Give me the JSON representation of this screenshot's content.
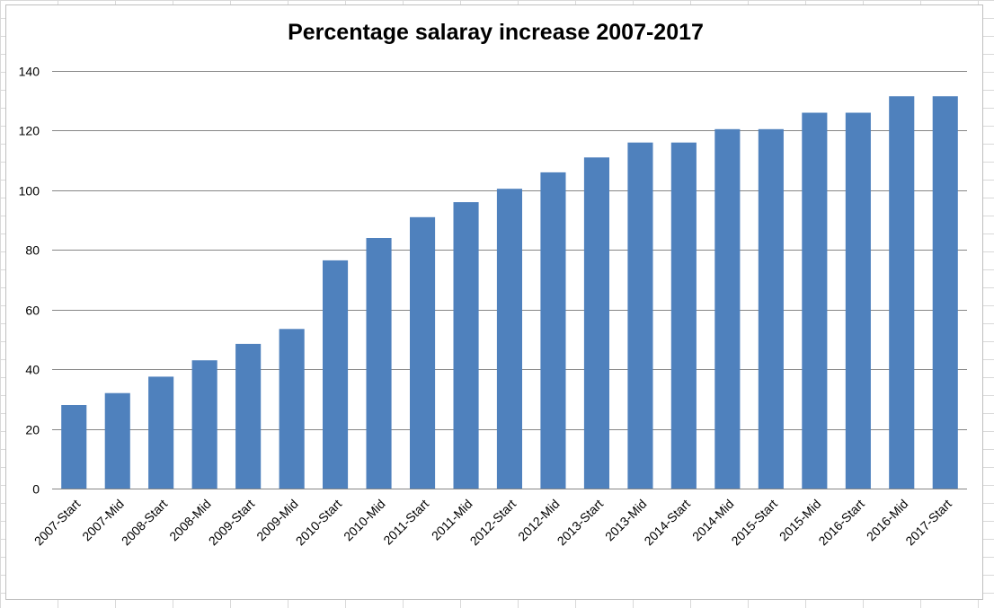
{
  "chart_data": {
    "type": "bar",
    "title": "Percentage salaray increase 2007-2017",
    "xlabel": "",
    "ylabel": "",
    "categories": [
      "2007-Start",
      "2007-Mid",
      "2008-Start",
      "2008-Mid",
      "2009-Start",
      "2009-Mid",
      "2010-Start",
      "2010-Mid",
      "2011-Start",
      "2011-Mid",
      "2012-Start",
      "2012-Mid",
      "2013-Start",
      "2013-Mid",
      "2014-Start",
      "2014-Mid",
      "2015-Start",
      "2015-Mid",
      "2016-Start",
      "2016-Mid",
      "2017-Start"
    ],
    "values": [
      28,
      32,
      37.5,
      43,
      48.5,
      53.5,
      76.5,
      84,
      91,
      96,
      100.5,
      106,
      111,
      116,
      116,
      120.5,
      120.5,
      126,
      126,
      131.5,
      131.5
    ],
    "ylim": [
      0,
      140
    ],
    "yticks": [
      0,
      20,
      40,
      60,
      80,
      100,
      120,
      140
    ],
    "grid": true,
    "legend": "none",
    "bar_color": "#4f81bd",
    "grid_color": "#868686"
  }
}
